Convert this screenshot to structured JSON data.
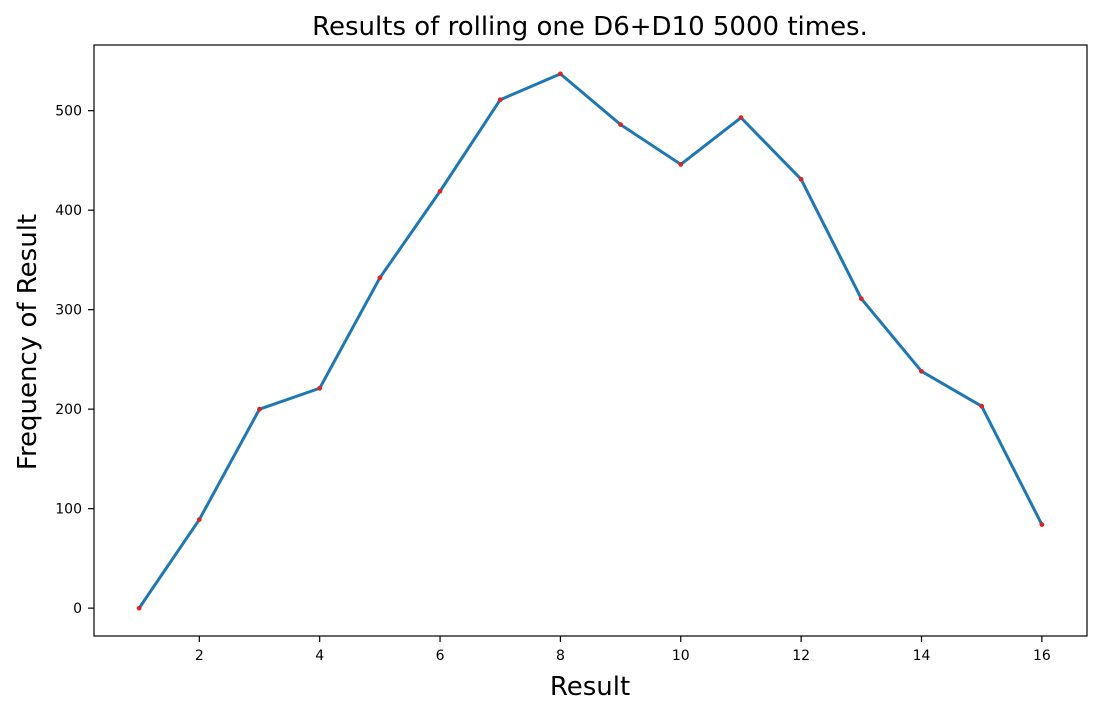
{
  "chart_data": {
    "type": "line",
    "title": "Results of rolling one D6+D10 5000 times.",
    "xlabel": "Result",
    "ylabel": "Frequency of Result",
    "xlim": [
      0.25,
      16.75
    ],
    "ylim": [
      -28,
      566
    ],
    "x_ticks": [
      2,
      4,
      6,
      8,
      10,
      12,
      14,
      16
    ],
    "y_ticks": [
      0,
      100,
      200,
      300,
      400,
      500
    ],
    "grid": false,
    "legend": "none",
    "series": [
      {
        "color": "#1f77b4",
        "marker_color": "#d62728",
        "x": [
          1,
          2,
          3,
          4,
          5,
          6,
          7,
          8,
          9,
          10,
          11,
          12,
          13,
          14,
          15,
          16
        ],
        "y": [
          0,
          89,
          200,
          221,
          332,
          419,
          511,
          537,
          486,
          446,
          493,
          431,
          311,
          238,
          203,
          84
        ]
      }
    ]
  }
}
